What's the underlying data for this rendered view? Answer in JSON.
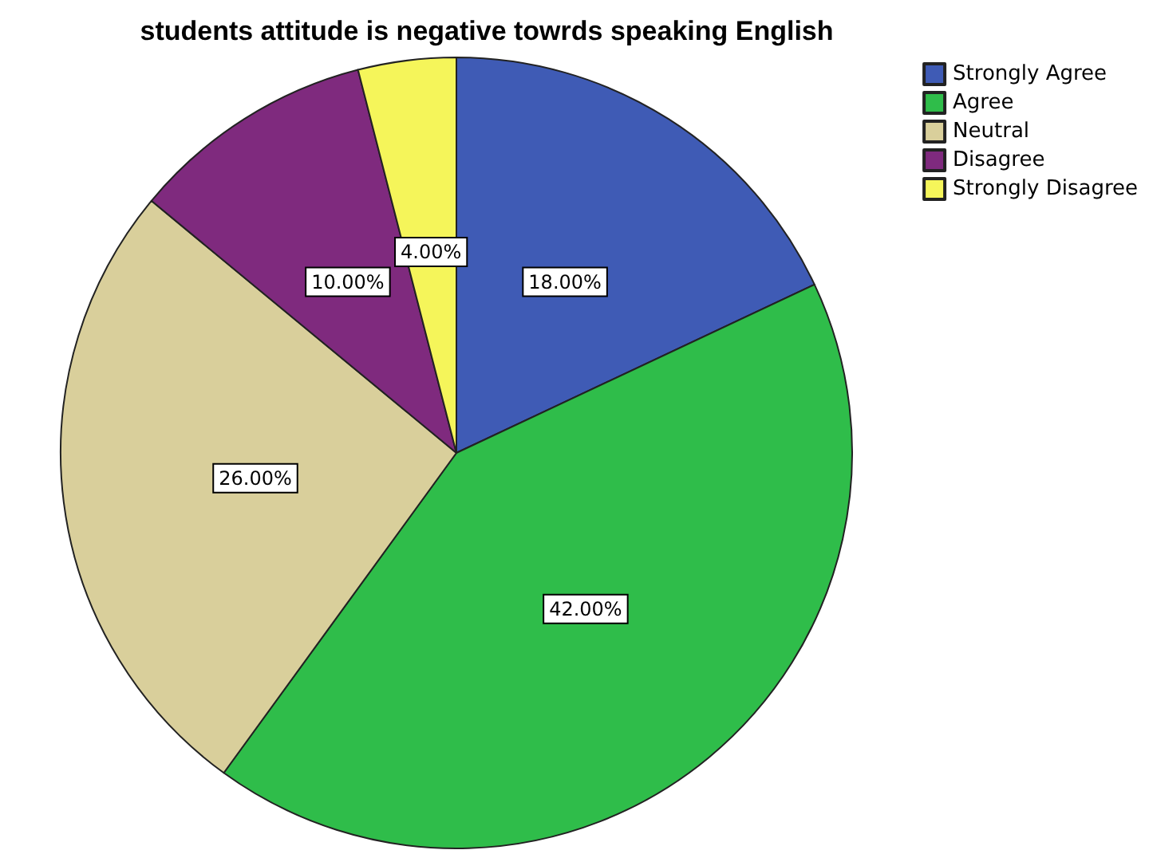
{
  "chart_data": {
    "type": "pie",
    "title": "students attitude is negative towrds speaking English",
    "categories": [
      "Strongly Agree",
      "Agree",
      "Neutral",
      "Disagree",
      "Strongly Disagree"
    ],
    "values": [
      18,
      42,
      26,
      10,
      4
    ],
    "value_labels": [
      "18.00%",
      "42.00%",
      "26.00%",
      "10.00%",
      "4.00%"
    ],
    "colors": [
      "#3f5bb5",
      "#2fbd4a",
      "#d9cf9b",
      "#7f2a7e",
      "#f5f55a"
    ],
    "legend": "top right"
  }
}
